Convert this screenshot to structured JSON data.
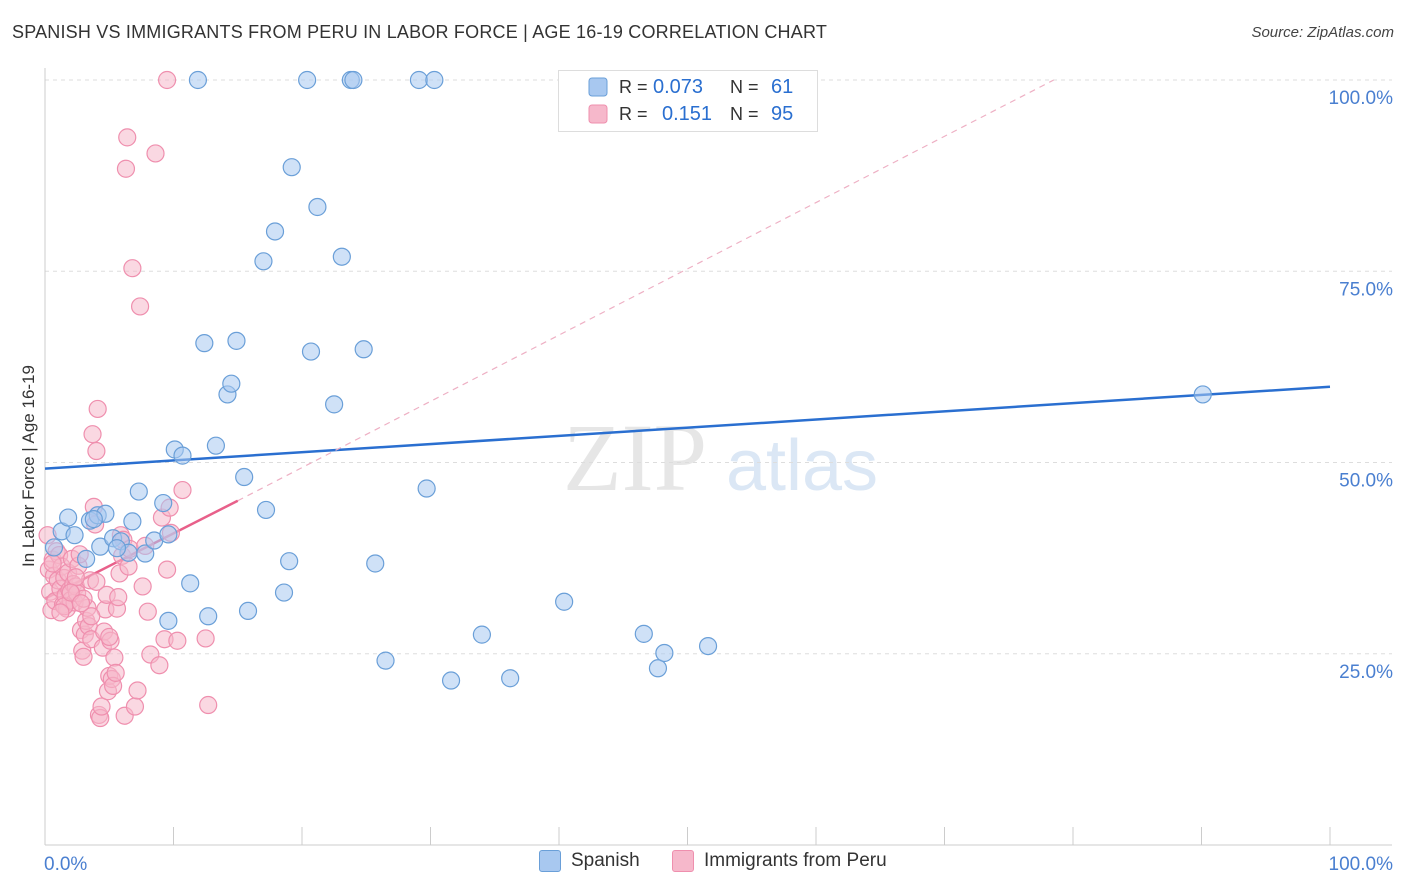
{
  "title": "SPANISH VS IMMIGRANTS FROM PERU IN LABOR FORCE | AGE 16-19 CORRELATION CHART",
  "source": "Source: ZipAtlas.com",
  "watermark": {
    "zip": "ZIP",
    "atlas": "atlas"
  },
  "colors": {
    "spanish_fill": "#a8c8f0",
    "spanish_stroke": "#6a9fd8",
    "spanish_line": "#2a6fd0",
    "peru_fill": "#f6b8cb",
    "peru_stroke": "#ef8fae",
    "peru_line": "#e8608a",
    "axis_text": "#4a7fd0",
    "grid": "#dddddd"
  },
  "legend": {
    "rows": [
      {
        "r_label": "R =",
        "r_value": "0.073",
        "n_label": "N =",
        "n_value": "61"
      },
      {
        "r_label": "R =",
        "r_value": "0.151",
        "n_label": "N =",
        "n_value": "95"
      }
    ]
  },
  "bottom_legend": [
    "Spanish",
    "Immigrants from Peru"
  ],
  "chart_data": {
    "type": "scatter",
    "title": "SPANISH VS IMMIGRANTS FROM PERU IN LABOR FORCE | AGE 16-19 CORRELATION CHART",
    "xlabel": "",
    "ylabel": "In Labor Force | Age 16-19",
    "xlim": [
      0,
      100
    ],
    "ylim": [
      0,
      100
    ],
    "x_tick_labels": [
      "0.0%",
      "100.0%"
    ],
    "y_tick_labels": [
      "25.0%",
      "50.0%",
      "75.0%",
      "100.0%"
    ],
    "y_ticks": [
      25,
      50,
      75,
      100
    ],
    "series": [
      {
        "name": "Spanish",
        "r": 0.073,
        "n": 61,
        "trend": {
          "x0": 0,
          "y0": 49.2,
          "x1": 100,
          "y1": 59.9
        },
        "points": [
          [
            0.7,
            38.9
          ],
          [
            1.3,
            41.0
          ],
          [
            1.8,
            42.8
          ],
          [
            2.3,
            40.5
          ],
          [
            3.2,
            37.4
          ],
          [
            3.5,
            42.4
          ],
          [
            4.1,
            43.1
          ],
          [
            4.3,
            39.0
          ],
          [
            4.7,
            43.3
          ],
          [
            5.3,
            40.1
          ],
          [
            5.9,
            39.7
          ],
          [
            6.5,
            38.2
          ],
          [
            6.8,
            42.3
          ],
          [
            7.3,
            46.2
          ],
          [
            7.8,
            38.1
          ],
          [
            8.5,
            39.8
          ],
          [
            9.2,
            44.7
          ],
          [
            9.6,
            40.6
          ],
          [
            10.1,
            51.7
          ],
          [
            10.7,
            50.9
          ],
          [
            11.3,
            34.2
          ],
          [
            11.9,
            100.0
          ],
          [
            12.4,
            65.6
          ],
          [
            12.7,
            29.9
          ],
          [
            13.3,
            52.2
          ],
          [
            14.2,
            58.9
          ],
          [
            14.5,
            60.3
          ],
          [
            14.9,
            65.9
          ],
          [
            15.5,
            48.1
          ],
          [
            15.8,
            30.6
          ],
          [
            17.0,
            76.3
          ],
          [
            17.2,
            43.8
          ],
          [
            17.9,
            80.2
          ],
          [
            18.6,
            33.0
          ],
          [
            19.0,
            37.1
          ],
          [
            19.2,
            88.6
          ],
          [
            20.4,
            100.0
          ],
          [
            20.7,
            64.5
          ],
          [
            21.2,
            83.4
          ],
          [
            22.5,
            57.6
          ],
          [
            23.1,
            76.9
          ],
          [
            23.8,
            100.0
          ],
          [
            24.0,
            100.0
          ],
          [
            24.8,
            64.8
          ],
          [
            25.7,
            36.8
          ],
          [
            26.5,
            24.1
          ],
          [
            29.1,
            100.0
          ],
          [
            29.7,
            46.6
          ],
          [
            30.3,
            100.0
          ],
          [
            31.6,
            21.5
          ],
          [
            34.0,
            27.5
          ],
          [
            36.2,
            21.8
          ],
          [
            40.4,
            31.8
          ],
          [
            46.6,
            27.6
          ],
          [
            47.7,
            23.1
          ],
          [
            48.2,
            25.1
          ],
          [
            51.6,
            26.0
          ],
          [
            90.1,
            58.9
          ],
          [
            9.6,
            29.3
          ],
          [
            3.8,
            42.6
          ],
          [
            5.6,
            38.8
          ]
        ]
      },
      {
        "name": "Immigrants from Peru",
        "r": 0.151,
        "n": 95,
        "trend": {
          "x0": 0,
          "y0": 32.2,
          "x1": 15,
          "y1": 45.0
        },
        "trend_dashed": {
          "x0": 15,
          "y0": 45.0,
          "x1": 78.5,
          "y1": 100.0
        },
        "points": [
          [
            0.2,
            40.5
          ],
          [
            0.3,
            36.0
          ],
          [
            0.4,
            33.1
          ],
          [
            0.5,
            30.7
          ],
          [
            0.6,
            37.3
          ],
          [
            0.7,
            35.2
          ],
          [
            0.8,
            31.9
          ],
          [
            0.9,
            38.4
          ],
          [
            1.0,
            34.6
          ],
          [
            1.1,
            37.9
          ],
          [
            1.2,
            33.5
          ],
          [
            1.3,
            36.4
          ],
          [
            1.4,
            31.4
          ],
          [
            1.5,
            34.9
          ],
          [
            1.6,
            32.6
          ],
          [
            1.7,
            30.9
          ],
          [
            1.8,
            35.6
          ],
          [
            1.9,
            33.3
          ],
          [
            2.0,
            32.0
          ],
          [
            2.1,
            37.4
          ],
          [
            2.2,
            34.1
          ],
          [
            2.3,
            31.7
          ],
          [
            2.4,
            33.8
          ],
          [
            2.5,
            32.9
          ],
          [
            2.6,
            36.5
          ],
          [
            2.7,
            38.0
          ],
          [
            2.8,
            28.1
          ],
          [
            2.9,
            25.4
          ],
          [
            3.0,
            24.6
          ],
          [
            3.1,
            27.5
          ],
          [
            3.2,
            29.3
          ],
          [
            3.3,
            31.0
          ],
          [
            3.4,
            28.6
          ],
          [
            3.5,
            34.6
          ],
          [
            3.6,
            26.9
          ],
          [
            3.7,
            53.7
          ],
          [
            3.8,
            44.2
          ],
          [
            3.9,
            41.9
          ],
          [
            4.0,
            51.5
          ],
          [
            4.1,
            57.0
          ],
          [
            4.2,
            17.0
          ],
          [
            4.3,
            16.6
          ],
          [
            4.4,
            18.1
          ],
          [
            4.5,
            25.8
          ],
          [
            4.6,
            27.9
          ],
          [
            4.7,
            30.8
          ],
          [
            4.8,
            32.7
          ],
          [
            4.9,
            20.1
          ],
          [
            5.0,
            22.1
          ],
          [
            5.1,
            26.7
          ],
          [
            5.2,
            21.7
          ],
          [
            5.3,
            20.8
          ],
          [
            5.4,
            24.5
          ],
          [
            5.5,
            22.5
          ],
          [
            5.6,
            30.9
          ],
          [
            5.7,
            32.4
          ],
          [
            5.8,
            35.5
          ],
          [
            5.9,
            40.5
          ],
          [
            6.0,
            37.8
          ],
          [
            6.1,
            39.9
          ],
          [
            6.2,
            16.9
          ],
          [
            6.3,
            88.4
          ],
          [
            6.4,
            92.5
          ],
          [
            6.5,
            36.4
          ],
          [
            6.6,
            38.7
          ],
          [
            6.8,
            75.4
          ],
          [
            7.0,
            18.1
          ],
          [
            7.2,
            20.2
          ],
          [
            7.4,
            70.4
          ],
          [
            7.6,
            33.8
          ],
          [
            7.8,
            39.1
          ],
          [
            8.0,
            30.5
          ],
          [
            8.2,
            24.9
          ],
          [
            8.6,
            90.4
          ],
          [
            8.9,
            23.5
          ],
          [
            9.1,
            42.8
          ],
          [
            9.3,
            26.9
          ],
          [
            9.5,
            36.0
          ],
          [
            9.7,
            44.1
          ],
          [
            9.8,
            40.8
          ],
          [
            9.5,
            100.0
          ],
          [
            10.3,
            26.7
          ],
          [
            10.7,
            46.4
          ],
          [
            12.7,
            18.3
          ],
          [
            12.5,
            27.0
          ],
          [
            1.5,
            31.2
          ],
          [
            2.4,
            35.0
          ],
          [
            3.0,
            32.2
          ],
          [
            3.6,
            29.9
          ],
          [
            4.0,
            34.4
          ],
          [
            0.6,
            36.8
          ],
          [
            1.2,
            30.4
          ],
          [
            2.0,
            33.0
          ],
          [
            2.8,
            31.6
          ],
          [
            5.0,
            27.2
          ]
        ]
      }
    ]
  }
}
